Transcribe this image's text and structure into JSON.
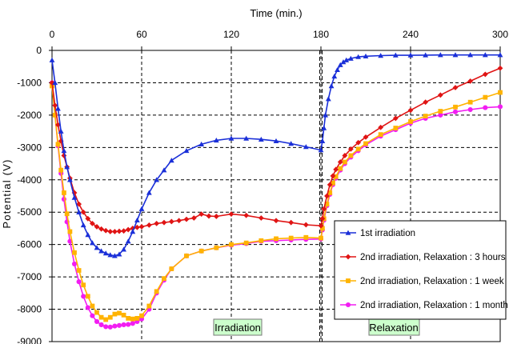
{
  "chart_data": {
    "type": "line",
    "title": "",
    "xlabel": "Time (min.)",
    "ylabel": "Potential (V)",
    "xlim": [
      0,
      300
    ],
    "ylim": [
      -9000,
      0
    ],
    "x_ticks": [
      0,
      60,
      120,
      180,
      240,
      300
    ],
    "y_ticks": [
      0,
      -1000,
      -2000,
      -3000,
      -4000,
      -5000,
      -6000,
      -7000,
      -8000,
      -9000
    ],
    "x_tick_labels": [
      "0",
      "60",
      "120",
      "180",
      "240",
      "300"
    ],
    "y_tick_labels": [
      "0",
      "-1000",
      "-2000",
      "-3000",
      "-4000",
      "-5000",
      "-6000",
      "-7000",
      "-8000",
      "-9000"
    ],
    "grid": "dashed",
    "vertical_markers": [
      180
    ],
    "legend_position": "bottom-right",
    "annotations": [
      {
        "text": "Irradiation",
        "x": 117,
        "y": -8580
      },
      {
        "text": "Relaxation",
        "x": 242,
        "y": -8580
      }
    ],
    "series": [
      {
        "name": "1st irradiation",
        "color": "#1a2fd8",
        "marker": "triangle",
        "x": [
          0,
          2,
          4,
          6,
          8,
          10,
          12,
          15,
          18,
          21,
          24,
          27,
          30,
          33,
          36,
          39,
          42,
          45,
          48,
          51,
          54,
          57,
          60,
          65,
          70,
          75,
          80,
          90,
          100,
          110,
          120,
          130,
          140,
          150,
          160,
          170,
          180,
          181,
          182,
          183,
          185,
          187,
          189,
          191,
          193,
          195,
          197,
          200,
          205,
          210,
          220,
          230,
          240,
          250,
          260,
          270,
          280,
          290,
          300
        ],
        "values": [
          -300,
          -1000,
          -1800,
          -2500,
          -3100,
          -3600,
          -4000,
          -4550,
          -5000,
          -5400,
          -5700,
          -5950,
          -6100,
          -6200,
          -6270,
          -6320,
          -6350,
          -6300,
          -6150,
          -5900,
          -5600,
          -5250,
          -4900,
          -4400,
          -4000,
          -3700,
          -3400,
          -3100,
          -2900,
          -2780,
          -2720,
          -2720,
          -2750,
          -2800,
          -2880,
          -2980,
          -3080,
          -2800,
          -2400,
          -2000,
          -1500,
          -1100,
          -800,
          -600,
          -450,
          -360,
          -300,
          -250,
          -200,
          -180,
          -160,
          -150,
          -150,
          -145,
          -140,
          -140,
          -140,
          -140,
          -140
        ]
      },
      {
        "name": "2nd irradiation, Relaxation : 3 hours",
        "color": "#e01414",
        "marker": "diamond",
        "x": [
          0,
          2,
          4,
          6,
          8,
          10,
          12,
          15,
          18,
          21,
          24,
          27,
          30,
          33,
          36,
          39,
          42,
          45,
          48,
          51,
          54,
          57,
          60,
          65,
          70,
          75,
          80,
          85,
          90,
          95,
          100,
          105,
          110,
          120,
          130,
          140,
          150,
          160,
          170,
          180,
          181,
          182,
          184,
          186,
          188,
          190,
          193,
          196,
          200,
          205,
          210,
          220,
          230,
          240,
          250,
          260,
          270,
          280,
          290,
          300
        ],
        "values": [
          -1000,
          -1700,
          -2300,
          -2800,
          -3250,
          -3600,
          -3950,
          -4400,
          -4750,
          -5000,
          -5200,
          -5350,
          -5450,
          -5520,
          -5570,
          -5600,
          -5600,
          -5590,
          -5580,
          -5540,
          -5500,
          -5470,
          -5450,
          -5400,
          -5350,
          -5320,
          -5290,
          -5260,
          -5220,
          -5180,
          -5060,
          -5120,
          -5130,
          -5060,
          -5100,
          -5180,
          -5260,
          -5320,
          -5390,
          -5420,
          -5200,
          -4900,
          -4500,
          -4150,
          -3880,
          -3680,
          -3450,
          -3250,
          -3050,
          -2850,
          -2680,
          -2380,
          -2100,
          -1850,
          -1600,
          -1380,
          -1150,
          -950,
          -740,
          -550
        ]
      },
      {
        "name": "2nd irradiation, Relaxation : 1 week",
        "color": "#ffb300",
        "marker": "square",
        "x": [
          0,
          2,
          4,
          6,
          8,
          10,
          12,
          15,
          18,
          21,
          24,
          27,
          30,
          33,
          36,
          39,
          42,
          45,
          48,
          51,
          54,
          57,
          60,
          65,
          70,
          75,
          80,
          90,
          100,
          110,
          120,
          130,
          140,
          150,
          160,
          170,
          180,
          181,
          182,
          184,
          186,
          188,
          190,
          193,
          196,
          200,
          205,
          210,
          220,
          230,
          240,
          250,
          260,
          270,
          280,
          290,
          300
        ],
        "values": [
          -1100,
          -2000,
          -2900,
          -3700,
          -4400,
          -5050,
          -5600,
          -6250,
          -6800,
          -7250,
          -7600,
          -7900,
          -8100,
          -8250,
          -8320,
          -8250,
          -8150,
          -8120,
          -8180,
          -8280,
          -8300,
          -8280,
          -8200,
          -7900,
          -7450,
          -7050,
          -6750,
          -6350,
          -6200,
          -6100,
          -6000,
          -5950,
          -5880,
          -5820,
          -5800,
          -5780,
          -5800,
          -5500,
          -5200,
          -4750,
          -4400,
          -4100,
          -3900,
          -3650,
          -3450,
          -3250,
          -3050,
          -2880,
          -2600,
          -2400,
          -2200,
          -2030,
          -1880,
          -1750,
          -1600,
          -1450,
          -1300
        ]
      },
      {
        "name": "2nd irradiation, Relaxation : 1 month",
        "color": "#f21df2",
        "marker": "circle",
        "x": [
          0,
          2,
          4,
          6,
          8,
          10,
          12,
          15,
          18,
          21,
          24,
          27,
          30,
          33,
          36,
          39,
          42,
          45,
          48,
          51,
          54,
          57,
          60,
          65,
          70,
          75,
          80,
          90,
          100,
          110,
          120,
          130,
          140,
          150,
          160,
          170,
          180,
          181,
          182,
          184,
          186,
          188,
          190,
          193,
          196,
          200,
          205,
          210,
          220,
          230,
          240,
          250,
          260,
          270,
          280,
          290,
          300
        ],
        "values": [
          -1000,
          -2000,
          -2950,
          -3800,
          -4600,
          -5300,
          -5900,
          -6600,
          -7150,
          -7600,
          -7950,
          -8200,
          -8380,
          -8480,
          -8540,
          -8550,
          -8520,
          -8500,
          -8480,
          -8470,
          -8440,
          -8380,
          -8300,
          -8000,
          -7500,
          -7100,
          -6750,
          -6350,
          -6200,
          -6100,
          -6020,
          -5970,
          -5900,
          -5880,
          -5860,
          -5840,
          -5830,
          -5550,
          -5250,
          -4800,
          -4450,
          -4150,
          -3950,
          -3700,
          -3500,
          -3300,
          -3100,
          -2920,
          -2650,
          -2450,
          -2250,
          -2100,
          -2000,
          -1900,
          -1830,
          -1770,
          -1740
        ]
      }
    ]
  }
}
